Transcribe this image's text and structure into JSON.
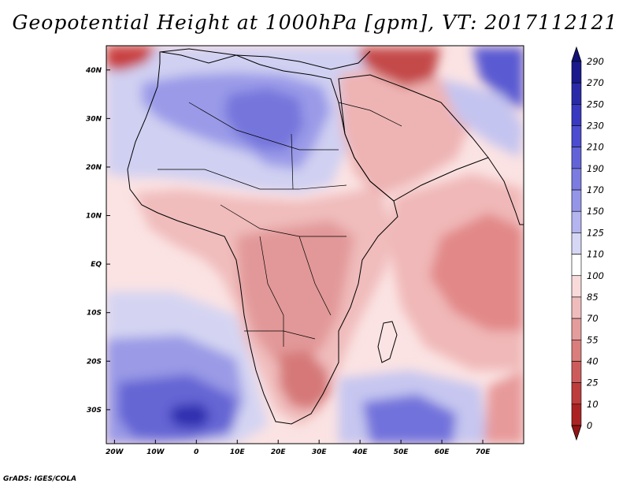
{
  "title": "Geopotential Height at 1000hPa [gpm], VT: 2017112121",
  "credit": "GrADS: IGES/COLA",
  "map": {
    "field": "geopotential-height",
    "level": "1000hPa",
    "units": "gpm",
    "lon_range": [
      -22,
      80
    ],
    "lat_range": [
      -37,
      45
    ],
    "lon_ticks": [
      "20W",
      "10W",
      "0",
      "10E",
      "20E",
      "30E",
      "40E",
      "50E",
      "60E",
      "70E"
    ],
    "lat_ticks": [
      "40N",
      "30N",
      "20N",
      "10N",
      "EQ",
      "10S",
      "20S",
      "30S"
    ],
    "colorbar_levels": [
      "290",
      "270",
      "250",
      "230",
      "210",
      "190",
      "170",
      "150",
      "125",
      "110",
      "100",
      "85",
      "70",
      "55",
      "40",
      "25",
      "10",
      "0"
    ],
    "colors": {
      "high": "#2323a8",
      "mid_blue": "#7070dc",
      "light_blue": "#d2d2f2",
      "neutral": "#ffffff",
      "light_red": "#f3c8c8",
      "mid_red": "#e28d8d",
      "deep_red": "#a51d1d"
    }
  }
}
